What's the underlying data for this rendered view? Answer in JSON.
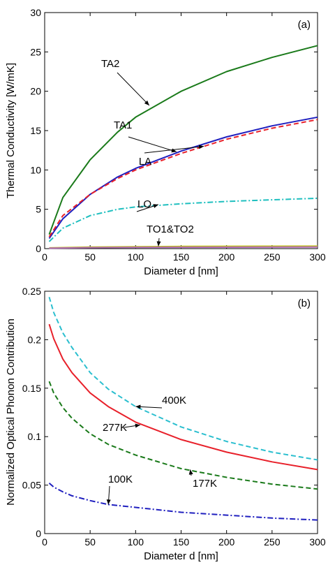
{
  "chart_data": [
    {
      "type": "line",
      "panel_label": "(a)",
      "xlabel": "Diameter d [nm]",
      "ylabel": "Thermal Conductivity [W/mK]",
      "xlim": [
        0,
        300
      ],
      "ylim": [
        0,
        30
      ],
      "xticks": [
        0,
        50,
        100,
        150,
        200,
        250,
        300
      ],
      "yticks": [
        0,
        5,
        10,
        15,
        20,
        25,
        30
      ],
      "grid": false,
      "series": [
        {
          "name": "TA2",
          "color": "#1a7a1a",
          "dash": "solid",
          "x": [
            5,
            20,
            50,
            80,
            100,
            150,
            200,
            250,
            300
          ],
          "y": [
            1.8,
            6.5,
            11.3,
            14.8,
            16.7,
            20.0,
            22.5,
            24.3,
            25.8
          ]
        },
        {
          "name": "TA1",
          "color": "#1f1fbf",
          "dash": "solid",
          "x": [
            5,
            20,
            50,
            80,
            100,
            150,
            200,
            250,
            300
          ],
          "y": [
            1.3,
            3.8,
            6.9,
            9.1,
            10.2,
            12.4,
            14.2,
            15.6,
            16.7
          ]
        },
        {
          "name": "LA",
          "color": "#e8202a",
          "dash": "dashed",
          "x": [
            5,
            20,
            50,
            80,
            100,
            150,
            200,
            250,
            300
          ],
          "y": [
            1.5,
            4.2,
            6.9,
            8.9,
            10.0,
            12.1,
            13.9,
            15.3,
            16.4
          ]
        },
        {
          "name": "LO",
          "color": "#1fbfbf",
          "dash": "dashdot",
          "x": [
            5,
            20,
            50,
            80,
            100,
            150,
            200,
            250,
            300
          ],
          "y": [
            0.9,
            2.6,
            4.2,
            5.0,
            5.3,
            5.7,
            6.0,
            6.2,
            6.4
          ]
        },
        {
          "name": "TO1&TO2",
          "color": "#bfbf1f",
          "dash": "solid",
          "x": [
            5,
            50,
            100,
            150,
            200,
            250,
            300
          ],
          "y": [
            0.1,
            0.2,
            0.25,
            0.28,
            0.3,
            0.31,
            0.32
          ]
        },
        {
          "name": "TO1&TO2",
          "color": "#b06ab0",
          "dash": "solid",
          "x": [
            5,
            50,
            100,
            150,
            200,
            250,
            300
          ],
          "y": [
            0.05,
            0.12,
            0.15,
            0.17,
            0.18,
            0.19,
            0.2
          ]
        }
      ],
      "annotations": [
        {
          "text": "TA2",
          "points_to": {
            "x": 115,
            "y": 18.2
          }
        },
        {
          "text": "TA1",
          "points_to": {
            "x": 145,
            "y": 12.3
          }
        },
        {
          "text": "LA",
          "points_to": {
            "x": 175,
            "y": 13.0
          }
        },
        {
          "text": "LO",
          "points_to": {
            "x": 125,
            "y": 5.6
          }
        },
        {
          "text": "TO1&TO2",
          "points_to": {
            "x": 125,
            "y": 0.3
          }
        }
      ]
    },
    {
      "type": "line",
      "panel_label": "(b)",
      "xlabel": "Diameter d [nm]",
      "ylabel": "Normalized Optical Phonon Contribution",
      "xlim": [
        0,
        300
      ],
      "ylim": [
        0,
        0.25
      ],
      "xticks": [
        0,
        50,
        100,
        150,
        200,
        250,
        300
      ],
      "yticks": [
        0,
        0.05,
        0.1,
        0.15,
        0.2,
        0.25
      ],
      "grid": false,
      "series": [
        {
          "name": "400K",
          "color": "#2bbfcf",
          "dash": "dashed",
          "x": [
            5,
            10,
            20,
            30,
            50,
            70,
            100,
            150,
            200,
            250,
            300
          ],
          "y": [
            0.244,
            0.228,
            0.207,
            0.192,
            0.166,
            0.149,
            0.131,
            0.11,
            0.095,
            0.084,
            0.076
          ]
        },
        {
          "name": "277K",
          "color": "#e8202a",
          "dash": "solid",
          "x": [
            5,
            10,
            20,
            30,
            50,
            70,
            100,
            150,
            200,
            250,
            300
          ],
          "y": [
            0.216,
            0.201,
            0.18,
            0.166,
            0.145,
            0.131,
            0.115,
            0.097,
            0.084,
            0.074,
            0.066
          ]
        },
        {
          "name": "177K",
          "color": "#1a7a1a",
          "dash": "dashed",
          "x": [
            5,
            10,
            20,
            30,
            50,
            70,
            100,
            150,
            200,
            250,
            300
          ],
          "y": [
            0.157,
            0.145,
            0.13,
            0.119,
            0.103,
            0.092,
            0.081,
            0.067,
            0.058,
            0.051,
            0.046
          ]
        },
        {
          "name": "100K",
          "color": "#1f1fbf",
          "dash": "dashdot",
          "x": [
            5,
            10,
            20,
            30,
            50,
            70,
            100,
            150,
            200,
            250,
            300
          ],
          "y": [
            0.052,
            0.048,
            0.043,
            0.039,
            0.034,
            0.03,
            0.027,
            0.022,
            0.019,
            0.016,
            0.014
          ]
        }
      ],
      "annotations": [
        {
          "text": "400K",
          "points_to": {
            "x": 100,
            "y": 0.131
          }
        },
        {
          "text": "277K",
          "points_to": {
            "x": 105,
            "y": 0.112
          }
        },
        {
          "text": "177K",
          "points_to": {
            "x": 160,
            "y": 0.066
          }
        },
        {
          "text": "100K",
          "points_to": {
            "x": 70,
            "y": 0.03
          }
        }
      ]
    }
  ]
}
